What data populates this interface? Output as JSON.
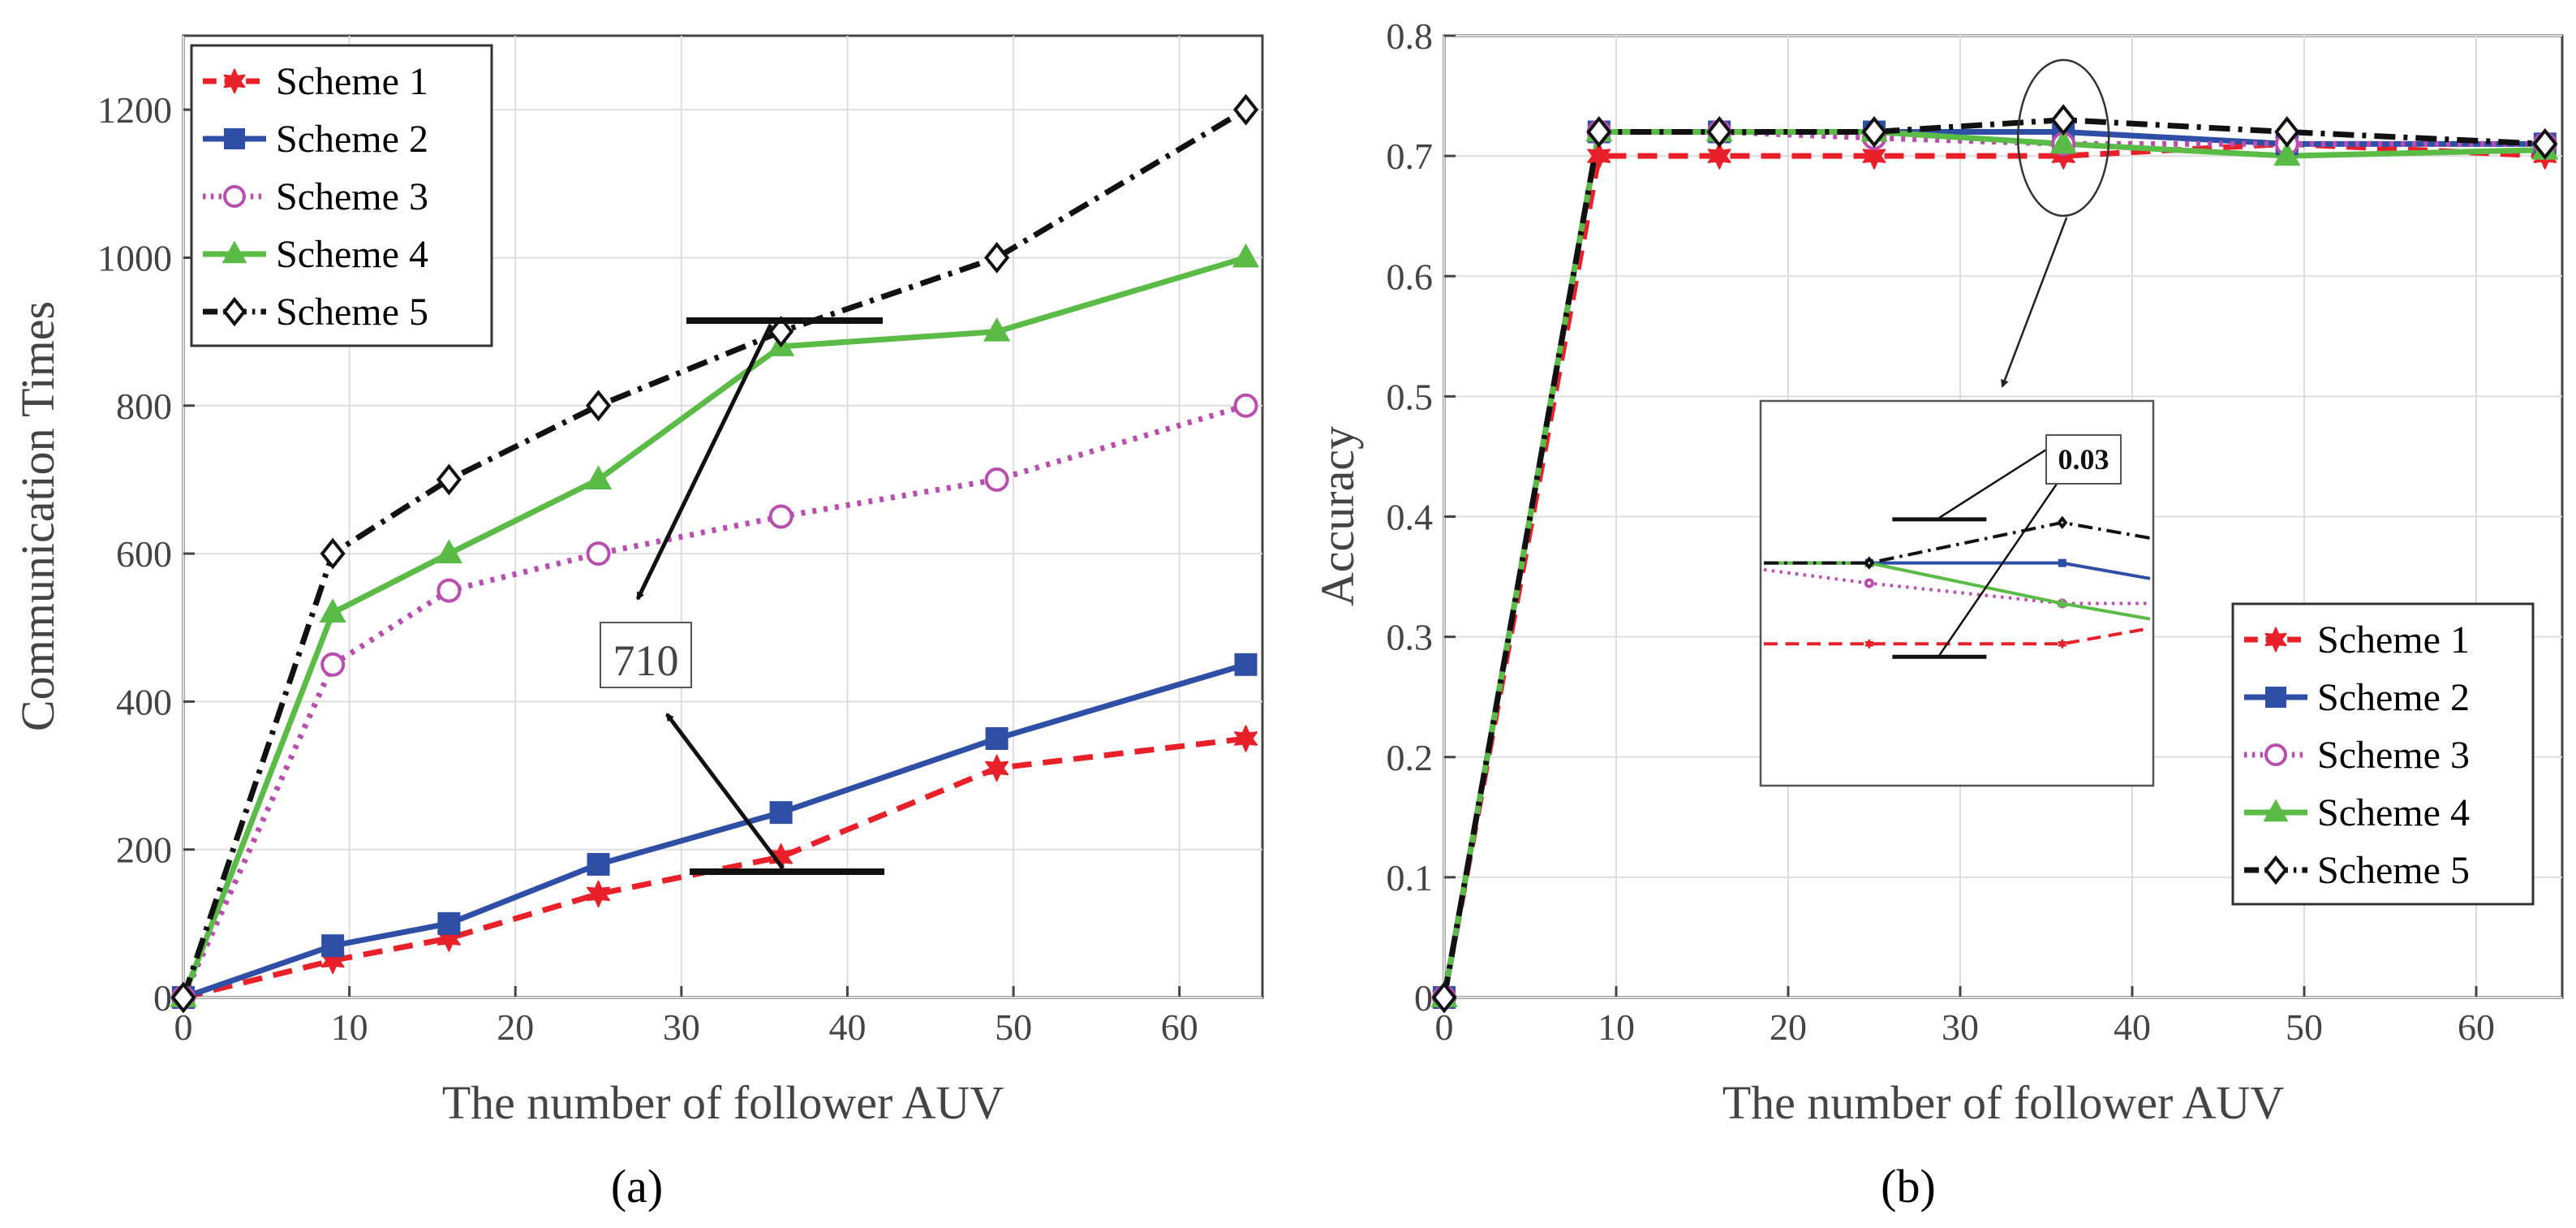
{
  "figure_captions": [
    "(a)",
    "(b)"
  ],
  "chart_data": [
    {
      "type": "line",
      "title": "",
      "xlabel": "The number of follower AUV",
      "ylabel": "Communication Times",
      "xlim": [
        0,
        65
      ],
      "ylim": [
        0,
        1300
      ],
      "xticks": [
        0,
        10,
        20,
        30,
        40,
        50,
        60
      ],
      "yticks": [
        0,
        200,
        400,
        600,
        800,
        1000,
        1200
      ],
      "grid": true,
      "legend_position": "top-left",
      "x": [
        0,
        9,
        16,
        25,
        36,
        49,
        64
      ],
      "series": [
        {
          "name": "Scheme 1",
          "color": "#e8202a",
          "dash": "dashed",
          "marker": "hexagram",
          "values": [
            0,
            50,
            80,
            140,
            190,
            310,
            350
          ]
        },
        {
          "name": "Scheme 2",
          "color": "#2f4ea5",
          "dash": "solid",
          "marker": "square",
          "values": [
            0,
            70,
            100,
            180,
            250,
            350,
            450
          ]
        },
        {
          "name": "Scheme 3",
          "color": "#b84eae",
          "dash": "dotted",
          "marker": "circle",
          "values": [
            0,
            450,
            550,
            600,
            650,
            700,
            800
          ]
        },
        {
          "name": "Scheme 4",
          "color": "#5bbb47",
          "dash": "solid",
          "marker": "triangle",
          "values": [
            0,
            520,
            600,
            700,
            880,
            900,
            1000
          ]
        },
        {
          "name": "Scheme 5",
          "color": "#111111",
          "dash": "dashdot",
          "marker": "diamond",
          "values": [
            0,
            600,
            700,
            800,
            900,
            1000,
            1200
          ]
        }
      ],
      "annotations": [
        {
          "text": "710",
          "note": "gap between Scheme 5 and Scheme 1 at x = 36"
        }
      ]
    },
    {
      "type": "line",
      "title": "",
      "xlabel": "The number of follower AUV",
      "ylabel": "Accuracy",
      "xlim": [
        0,
        65
      ],
      "ylim": [
        0,
        0.8
      ],
      "xticks": [
        0,
        10,
        20,
        30,
        40,
        50,
        60
      ],
      "yticks": [
        0,
        0.1,
        0.2,
        0.3,
        0.4,
        0.5,
        0.6,
        0.7,
        0.8
      ],
      "grid": true,
      "legend_position": "bottom-right",
      "x": [
        0,
        9,
        16,
        25,
        36,
        49,
        64
      ],
      "series": [
        {
          "name": "Scheme 1",
          "color": "#e8202a",
          "dash": "dashed",
          "marker": "hexagram",
          "values": [
            0,
            0.7,
            0.7,
            0.7,
            0.7,
            0.71,
            0.7
          ]
        },
        {
          "name": "Scheme 2",
          "color": "#2f4ea5",
          "dash": "solid",
          "marker": "square",
          "values": [
            0,
            0.72,
            0.72,
            0.72,
            0.72,
            0.71,
            0.71
          ]
        },
        {
          "name": "Scheme 3",
          "color": "#b84eae",
          "dash": "dotted",
          "marker": "circle",
          "values": [
            0,
            0.72,
            0.72,
            0.715,
            0.71,
            0.71,
            0.71
          ]
        },
        {
          "name": "Scheme 4",
          "color": "#5bbb47",
          "dash": "solid",
          "marker": "triangle",
          "values": [
            0,
            0.72,
            0.72,
            0.72,
            0.71,
            0.7,
            0.705
          ]
        },
        {
          "name": "Scheme 5",
          "color": "#111111",
          "dash": "dashdot",
          "marker": "diamond",
          "values": [
            0,
            0.72,
            0.72,
            0.72,
            0.73,
            0.72,
            0.71
          ]
        }
      ],
      "inset": {
        "xrange": [
          19,
          41
        ],
        "yrange": [
          0.685,
          0.74
        ],
        "label": "0.03",
        "note": "zoom of the region circled near x = 36"
      }
    }
  ]
}
